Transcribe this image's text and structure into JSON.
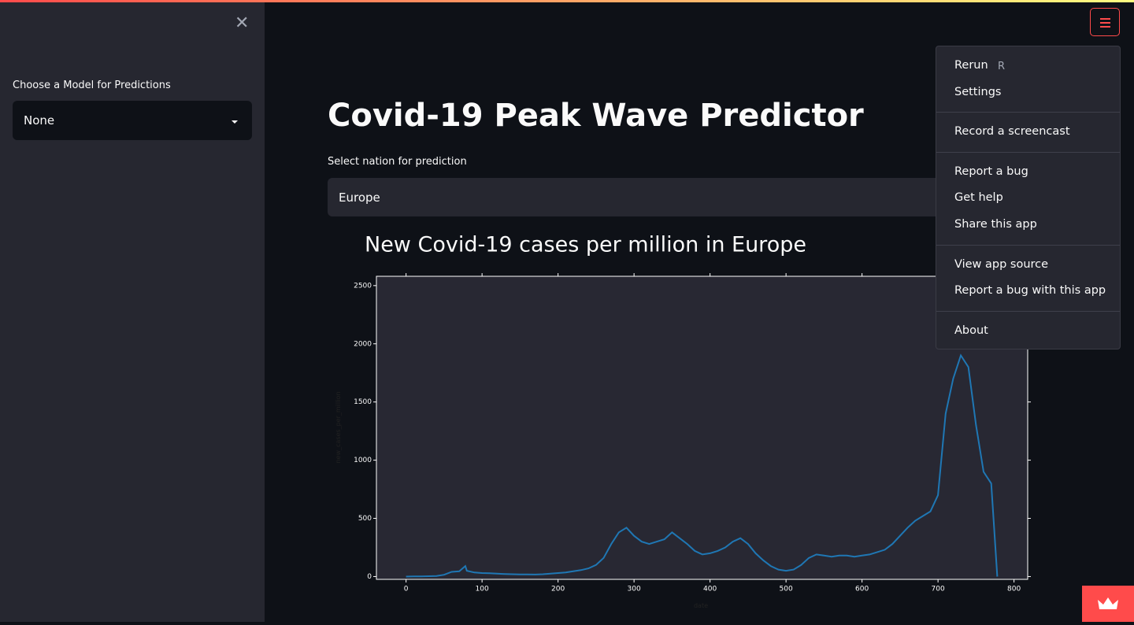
{
  "sidebar": {
    "label": "Choose a Model for Predictions",
    "select": "None"
  },
  "main": {
    "title": "Covid-19 Peak Wave Predictor",
    "select_label": "Select nation for prediction",
    "select_value": "Europe"
  },
  "menu": {
    "rerun": "Rerun",
    "shortcut": "R",
    "settings": "Settings",
    "record": "Record a screencast",
    "report": "Report a bug",
    "help": "Get help",
    "share": "Share this app",
    "source": "View app source",
    "report_app": "Report a bug with this app",
    "about": "About"
  },
  "chart_data": {
    "type": "line",
    "title": "New Covid-19 cases per million in Europe",
    "x_label": "date",
    "y_label": "new_cases_per_million",
    "color": "#1f77b4",
    "x": [
      0,
      10,
      20,
      30,
      40,
      50,
      60,
      70,
      78,
      80,
      90,
      100,
      110,
      120,
      130,
      140,
      150,
      160,
      170,
      180,
      190,
      200,
      210,
      220,
      230,
      240,
      250,
      260,
      270,
      280,
      290,
      300,
      310,
      320,
      330,
      340,
      350,
      360,
      370,
      380,
      390,
      400,
      410,
      420,
      430,
      440,
      450,
      460,
      470,
      480,
      490,
      500,
      510,
      520,
      530,
      540,
      550,
      560,
      570,
      580,
      590,
      600,
      610,
      620,
      630,
      640,
      650,
      660,
      670,
      680,
      690,
      700,
      710,
      720,
      730,
      740,
      750,
      760,
      770,
      778
    ],
    "values": [
      0,
      1,
      2,
      3,
      5,
      15,
      40,
      45,
      90,
      50,
      35,
      30,
      28,
      25,
      22,
      20,
      18,
      18,
      17,
      20,
      25,
      30,
      35,
      45,
      55,
      70,
      100,
      160,
      280,
      380,
      420,
      350,
      300,
      280,
      300,
      320,
      380,
      330,
      280,
      220,
      190,
      200,
      220,
      250,
      300,
      330,
      280,
      200,
      140,
      90,
      60,
      50,
      60,
      100,
      160,
      190,
      180,
      170,
      180,
      180,
      170,
      180,
      190,
      210,
      230,
      280,
      350,
      420,
      480,
      520,
      560,
      700,
      1400,
      1700,
      1900,
      1800,
      1300,
      900,
      800,
      0
    ],
    "xlim": [
      -39,
      818
    ],
    "ylim": [
      -24,
      2580
    ],
    "xticks": [
      0,
      100,
      200,
      300,
      400,
      500,
      600,
      700,
      800
    ],
    "yticks": [
      0,
      500,
      1000,
      1500,
      2000,
      2500
    ]
  }
}
